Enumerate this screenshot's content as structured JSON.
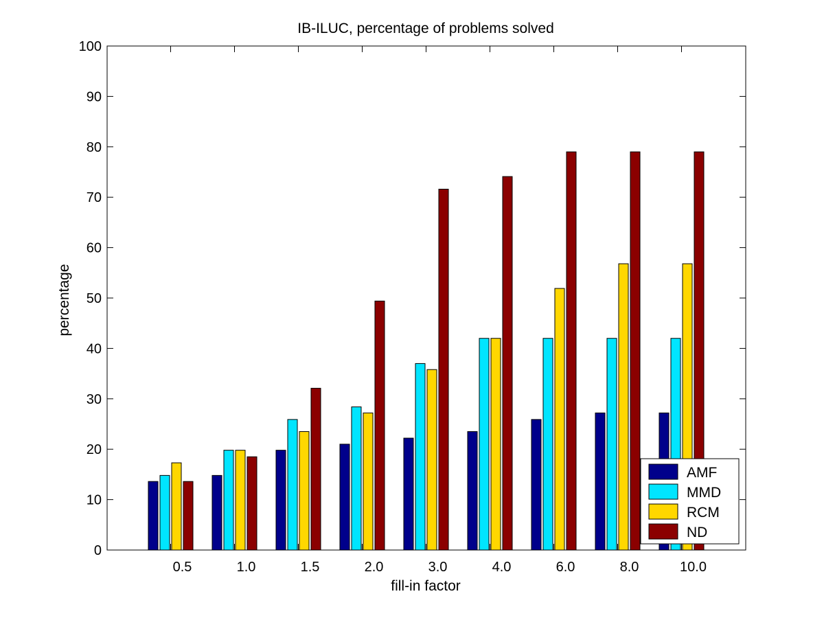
{
  "chart_data": {
    "type": "bar",
    "title": "IB-ILUC, percentage of problems solved",
    "xlabel": "fill-in factor",
    "ylabel": "percentage",
    "ylim": [
      0,
      100
    ],
    "yticks": [
      0,
      10,
      20,
      30,
      40,
      50,
      60,
      70,
      80,
      90,
      100
    ],
    "categories": [
      "0.5",
      "1.0",
      "1.5",
      "2.0",
      "3.0",
      "4.0",
      "6.0",
      "8.0",
      "10.0"
    ],
    "series": [
      {
        "name": "AMF",
        "color": "#00008b",
        "values": [
          13.6,
          14.8,
          19.8,
          21.0,
          22.2,
          23.5,
          25.9,
          27.2,
          27.2
        ]
      },
      {
        "name": "MMD",
        "color": "#00e5ff",
        "values": [
          14.8,
          19.8,
          25.9,
          28.4,
          37.0,
          42.0,
          42.0,
          42.0,
          42.0
        ]
      },
      {
        "name": "RCM",
        "color": "#ffd700",
        "values": [
          17.3,
          19.8,
          23.5,
          27.2,
          35.8,
          42.0,
          51.9,
          56.8,
          56.8
        ]
      },
      {
        "name": "ND",
        "color": "#8b0000",
        "values": [
          13.6,
          18.5,
          32.1,
          49.4,
          71.6,
          74.1,
          79.0,
          79.0,
          79.0
        ]
      }
    ],
    "legend": {
      "position": "bottom-right",
      "entries": [
        "AMF",
        "MMD",
        "RCM",
        " ND"
      ]
    },
    "grid": false
  }
}
